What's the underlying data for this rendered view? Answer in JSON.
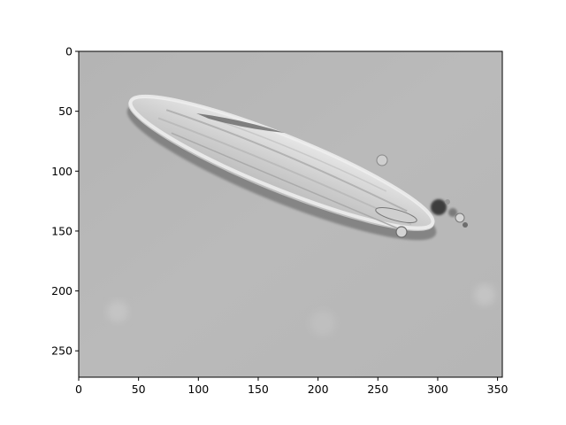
{
  "figure": {
    "kind": "grayscale microscopy image of an elongated cell displayed with imshow-style pixel axes",
    "background_color": "#b8b8b8",
    "cell_color": "#d8d8d8",
    "outline_color": "#ececec",
    "shadow_color": "#4a4a4a"
  },
  "axes": {
    "x": {
      "range": [
        0,
        354
      ],
      "ticks": [
        0,
        50,
        100,
        150,
        200,
        250,
        300,
        350
      ]
    },
    "y": {
      "range": [
        272,
        0
      ],
      "ticks": [
        0,
        50,
        100,
        150,
        200,
        250
      ],
      "inverted": true
    }
  }
}
